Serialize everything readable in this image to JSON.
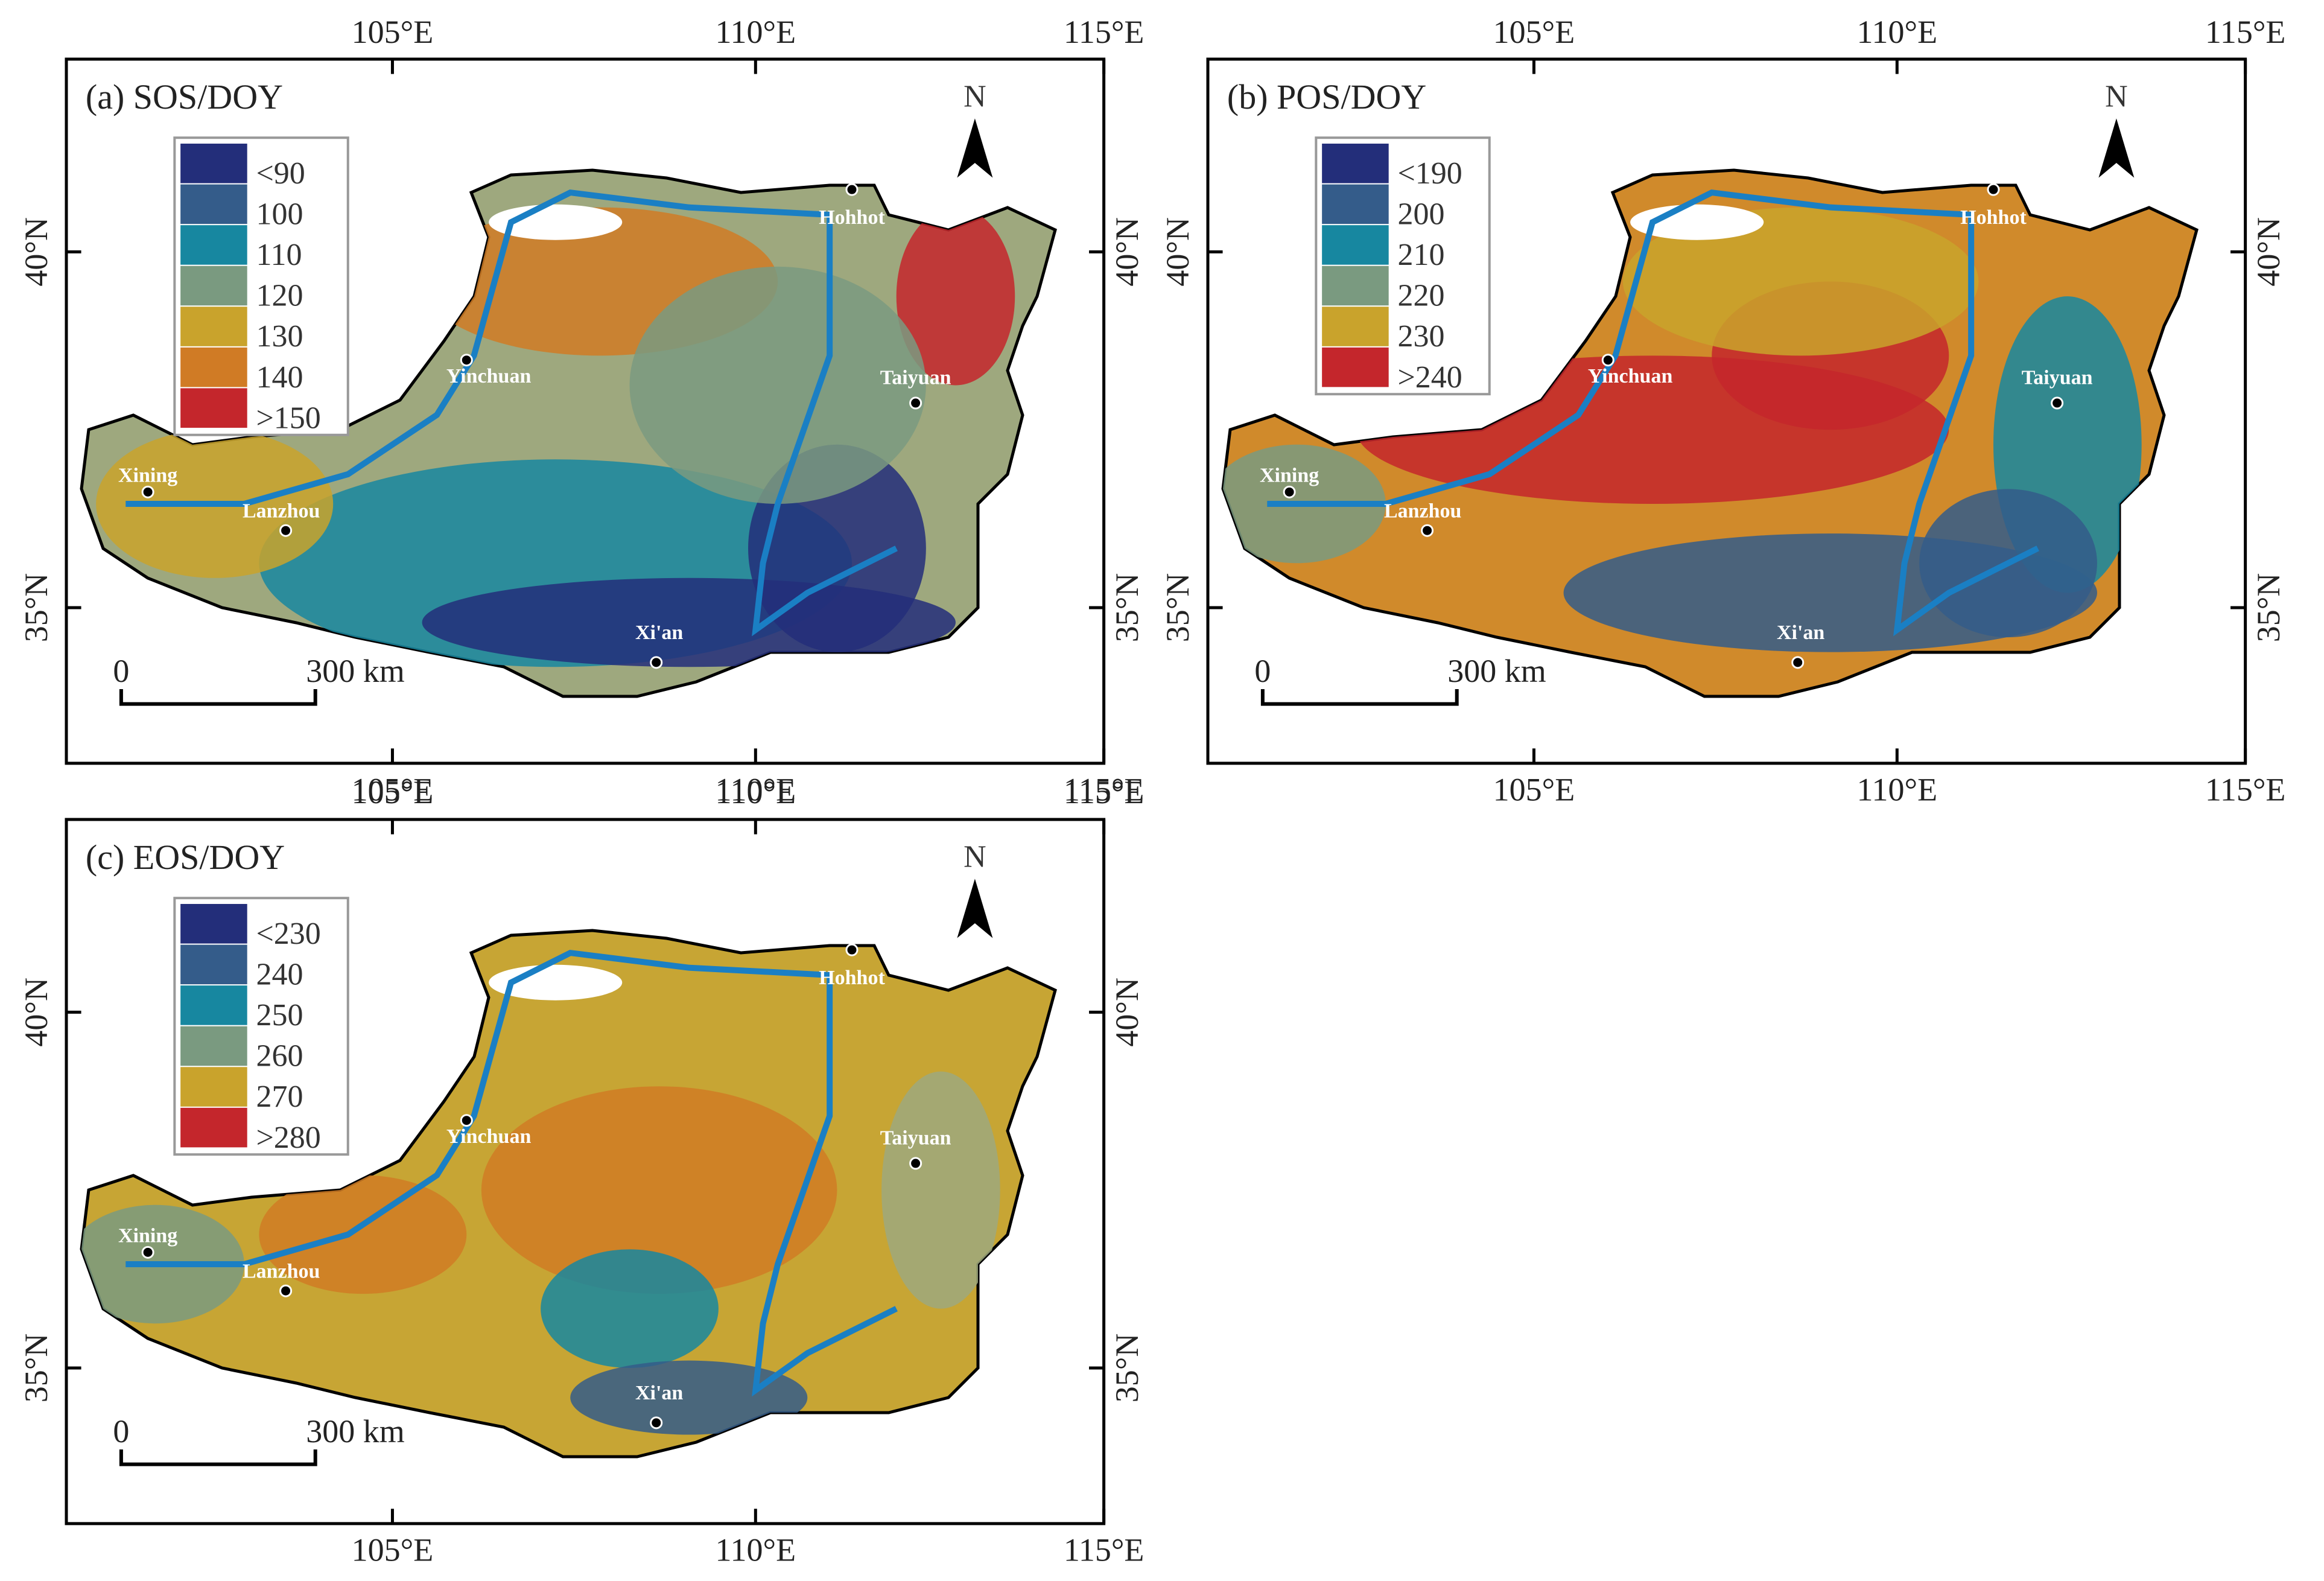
{
  "panels": [
    {
      "title": "(a) SOS/DOY",
      "legend": [
        "<90",
        "100",
        "110",
        "120",
        "130",
        "140",
        ">150"
      ]
    },
    {
      "title": "(b) POS/DOY",
      "legend": [
        "<190",
        "200",
        "210",
        "220",
        "230",
        ">240"
      ]
    },
    {
      "title": "(c) EOS/DOY",
      "legend": [
        "<230",
        "240",
        "250",
        "260",
        "270",
        ">280"
      ]
    }
  ],
  "cities": [
    "Hohhot",
    "Yinchuan",
    "Taiyuan",
    "Xining",
    "Lanzhou",
    "Xi'an"
  ],
  "scale_bar": [
    "0",
    "300 km"
  ],
  "north": "N",
  "x_ticks": [
    "105°E",
    "110°E",
    "115°E"
  ],
  "y_ticks": [
    "40°N",
    "35°N"
  ]
}
